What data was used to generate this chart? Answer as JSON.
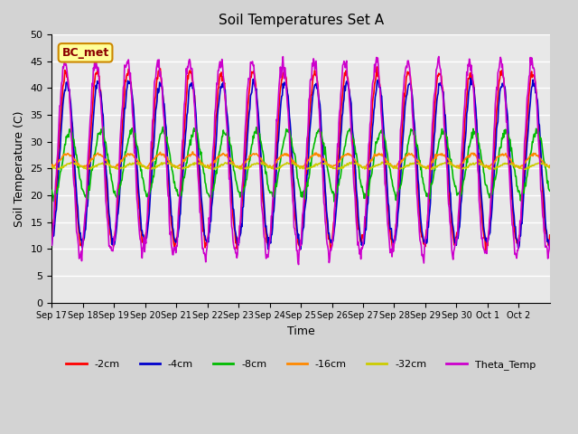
{
  "title": "Soil Temperatures Set A",
  "xlabel": "Time",
  "ylabel": "Soil Temperature (C)",
  "ylim": [
    0,
    50
  ],
  "yticks": [
    0,
    5,
    10,
    15,
    20,
    25,
    30,
    35,
    40,
    45,
    50
  ],
  "bg_color": "#e8e8e8",
  "fig_bg_color": "#d3d3d3",
  "annotation_text": "BC_met",
  "annotation_bg": "#ffff99",
  "annotation_border": "#cc8800",
  "legend_entries": [
    "-2cm",
    "-4cm",
    "-8cm",
    "-16cm",
    "-32cm",
    "Theta_Temp"
  ],
  "line_colors": [
    "#ff0000",
    "#0000cc",
    "#00bb00",
    "#ff8800",
    "#cccc00",
    "#cc00cc"
  ],
  "x_tick_labels": [
    "Sep 17",
    "Sep 18",
    "Sep 19",
    "Sep 20",
    "Sep 21",
    "Sep 22",
    "Sep 23",
    "Sep 24",
    "Sep 25",
    "Sep 26",
    "Sep 27",
    "Sep 28",
    "Sep 29",
    "Sep 30",
    "Oct 1",
    "Oct 2"
  ],
  "num_days": 16,
  "points_per_day": 48
}
